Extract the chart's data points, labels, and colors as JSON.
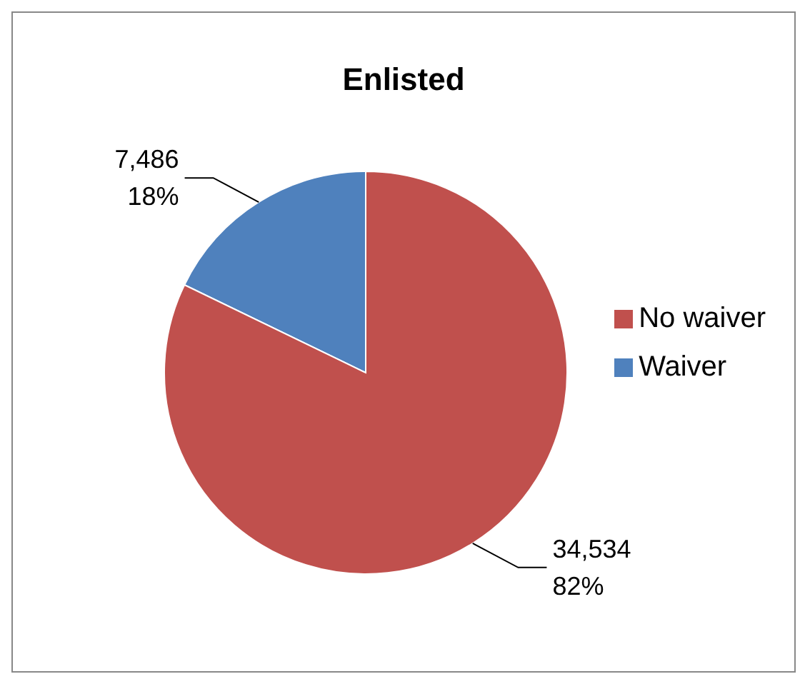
{
  "chart_data": {
    "type": "pie",
    "title": "Enlisted",
    "categories": [
      "Waiver",
      "No waiver"
    ],
    "values": [
      7486,
      34534
    ],
    "colors": [
      "#4f81bd",
      "#c0504d"
    ],
    "value_labels": [
      "7,486\n18%",
      "34,534\n82%"
    ],
    "legend": "right"
  }
}
